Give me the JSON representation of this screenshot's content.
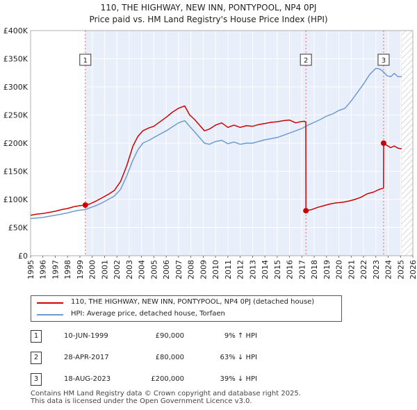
{
  "title_line1": "110, THE HIGHWAY, NEW INN, PONTYPOOL, NP4 0PJ",
  "title_line2": "Price paid vs. HM Land Registry's House Price Index (HPI)",
  "colors": {
    "property": "#cc0000",
    "hpi": "#6b9bd1",
    "shade": "#e8eefa",
    "hatch": "#bbbbbb"
  },
  "chart_data": {
    "type": "line",
    "title": "Price paid vs. HM Land Registry's House Price Index (HPI)",
    "xlabel": "",
    "ylabel": "",
    "xlim": [
      1995,
      2026
    ],
    "ylim": [
      0,
      400000
    ],
    "y_ticks": [
      0,
      50000,
      100000,
      150000,
      200000,
      250000,
      300000,
      350000,
      400000
    ],
    "y_tick_labels": [
      "£0",
      "£50K",
      "£100K",
      "£150K",
      "£200K",
      "£250K",
      "£300K",
      "£350K",
      "£400K"
    ],
    "x_ticks": [
      1995,
      1996,
      1997,
      1998,
      1999,
      2000,
      2001,
      2002,
      2003,
      2004,
      2005,
      2006,
      2007,
      2008,
      2009,
      2010,
      2011,
      2012,
      2013,
      2014,
      2015,
      2016,
      2017,
      2018,
      2019,
      2020,
      2021,
      2022,
      2023,
      2024,
      2025,
      2026
    ],
    "shaded_range": [
      1999.44,
      2025.1
    ],
    "future_hatch_from": 2025.1,
    "series": [
      {
        "name": "110, THE HIGHWAY, NEW INN, PONTYPOOL, NP4 0PJ (detached house)",
        "x": [
          1995.0,
          1995.5,
          1996.0,
          1996.5,
          1997.0,
          1997.5,
          1998.0,
          1998.5,
          1999.0,
          1999.44,
          1999.8,
          2000.3,
          2000.8,
          2001.3,
          2001.8,
          2002.3,
          2002.8,
          2003.3,
          2003.7,
          2004.1,
          2004.6,
          2005.0,
          2005.5,
          2006.0,
          2006.5,
          2007.0,
          2007.5,
          2007.9,
          2008.3,
          2008.7,
          2009.1,
          2009.5,
          2010.0,
          2010.5,
          2011.0,
          2011.5,
          2012.0,
          2012.5,
          2013.0,
          2013.5,
          2014.0,
          2014.5,
          2015.0,
          2015.5,
          2016.0,
          2016.5,
          2016.9,
          2017.2,
          2017.32,
          2017.33,
          2017.8,
          2018.3,
          2018.8,
          2019.3,
          2019.8,
          2020.3,
          2020.8,
          2021.3,
          2021.8,
          2022.3,
          2022.8,
          2023.3,
          2023.62,
          2023.63,
          2023.9,
          2024.2,
          2024.5,
          2024.8,
          2025.1
        ],
        "y": [
          72000,
          74000,
          75000,
          77000,
          79000,
          82000,
          84000,
          87000,
          89000,
          90000,
          92000,
          97000,
          103000,
          109000,
          116000,
          132000,
          160000,
          195000,
          212000,
          222000,
          227000,
          230000,
          238000,
          246000,
          255000,
          262000,
          266000,
          250000,
          242000,
          232000,
          222000,
          225000,
          232000,
          236000,
          228000,
          232000,
          228000,
          231000,
          230000,
          233000,
          235000,
          237000,
          238000,
          240000,
          241000,
          236000,
          238000,
          239000,
          237000,
          80000,
          82000,
          86000,
          89000,
          92000,
          94000,
          95000,
          97000,
          100000,
          104000,
          110000,
          113000,
          118000,
          120000,
          200000,
          196000,
          192000,
          195000,
          191000,
          190000
        ]
      },
      {
        "name": "HPI: Average price, detached house, Torfaen",
        "x": [
          1995.0,
          1995.5,
          1996.0,
          1996.5,
          1997.0,
          1997.5,
          1998.0,
          1998.5,
          1999.0,
          1999.44,
          1999.8,
          2000.3,
          2000.8,
          2001.3,
          2001.8,
          2002.3,
          2002.8,
          2003.3,
          2003.7,
          2004.1,
          2004.6,
          2005.0,
          2005.5,
          2006.0,
          2006.5,
          2007.0,
          2007.5,
          2007.9,
          2008.3,
          2008.7,
          2009.1,
          2009.5,
          2010.0,
          2010.5,
          2011.0,
          2011.5,
          2012.0,
          2012.5,
          2013.0,
          2013.5,
          2014.0,
          2014.5,
          2015.0,
          2015.5,
          2016.0,
          2016.5,
          2017.0,
          2017.5,
          2018.0,
          2018.5,
          2019.0,
          2019.5,
          2020.0,
          2020.5,
          2021.0,
          2021.5,
          2022.0,
          2022.5,
          2023.0,
          2023.3,
          2023.6,
          2023.9,
          2024.2,
          2024.5,
          2024.8,
          2025.1
        ],
        "y": [
          66000,
          67000,
          68000,
          70000,
          72000,
          74000,
          76000,
          79000,
          81000,
          82000,
          85000,
          89000,
          94000,
          100000,
          106000,
          118000,
          142000,
          170000,
          188000,
          200000,
          205000,
          210000,
          216000,
          222000,
          229000,
          236000,
          240000,
          230000,
          220000,
          210000,
          200000,
          198000,
          203000,
          205000,
          199000,
          202000,
          198000,
          200000,
          200000,
          203000,
          206000,
          208000,
          210000,
          214000,
          218000,
          222000,
          226000,
          232000,
          237000,
          242000,
          248000,
          252000,
          258000,
          262000,
          275000,
          290000,
          305000,
          322000,
          333000,
          332000,
          327000,
          320000,
          318000,
          324000,
          318000,
          318000
        ]
      }
    ],
    "markers": [
      {
        "label": "1",
        "x": 1999.44,
        "y": 90000
      },
      {
        "label": "2",
        "x": 2017.33,
        "y": 80000
      },
      {
        "label": "3",
        "x": 2023.63,
        "y": 200000
      }
    ]
  },
  "legend": {
    "property_label": "110, THE HIGHWAY, NEW INN, PONTYPOOL, NP4 0PJ (detached house)",
    "hpi_label": "HPI: Average price, detached house, Torfaen"
  },
  "transactions": [
    {
      "num": "1",
      "date": "10-JUN-1999",
      "price": "£90,000",
      "hpi": "9% ↑ HPI"
    },
    {
      "num": "2",
      "date": "28-APR-2017",
      "price": "£80,000",
      "hpi": "63% ↓ HPI"
    },
    {
      "num": "3",
      "date": "18-AUG-2023",
      "price": "£200,000",
      "hpi": "39% ↓ HPI"
    }
  ],
  "footer": {
    "line1": "Contains HM Land Registry data © Crown copyright and database right 2025.",
    "line2": "This data is licensed under the Open Government Licence v3.0."
  }
}
